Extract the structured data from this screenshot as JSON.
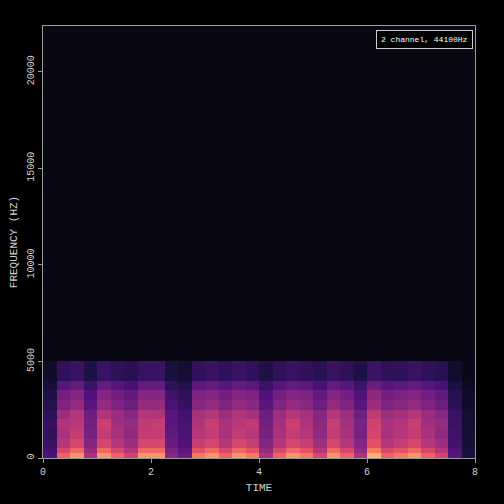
{
  "chart_data": {
    "type": "heatmap",
    "x_label": "TIME",
    "y_label": "FREQUENCY (HZ)",
    "annotation": "2 channel, 44100Hz",
    "xlim": [
      0,
      8
    ],
    "ylim": [
      0,
      22370
    ],
    "xticks": [
      0,
      2,
      4,
      6,
      8
    ],
    "yticks": [
      0,
      5000,
      10000,
      15000,
      20000
    ],
    "grid": false,
    "time_bins": [
      0,
      0.25,
      0.5,
      0.75,
      1,
      1.25,
      1.5,
      1.75,
      2,
      2.25,
      2.5,
      2.75,
      3,
      3.25,
      3.5,
      3.75,
      4,
      4.25,
      4.5,
      4.75,
      5,
      5.25,
      5.5,
      5.75,
      6,
      6.25,
      6.5,
      6.75,
      7,
      7.25,
      7.5,
      7.75,
      8
    ],
    "frequency_bins": [
      0,
      250,
      500,
      1000,
      1500,
      2000,
      2500,
      3000,
      3500,
      4000,
      5000,
      22370
    ],
    "color_range": [
      0,
      100
    ],
    "cells": [
      [
        29,
        76,
        86,
        57,
        86,
        76,
        67,
        86,
        86,
        48,
        38,
        81,
        86,
        76,
        86,
        81,
        57,
        76,
        86,
        81,
        67,
        86,
        76,
        57,
        90,
        76,
        81,
        86,
        76,
        67,
        33,
        14
      ],
      [
        26,
        68,
        77,
        51,
        77,
        68,
        60,
        77,
        77,
        43,
        34,
        72,
        77,
        68,
        77,
        72,
        51,
        68,
        77,
        72,
        60,
        77,
        68,
        51,
        81,
        68,
        72,
        77,
        68,
        60,
        30,
        13
      ],
      [
        23,
        60,
        68,
        45,
        68,
        60,
        53,
        68,
        68,
        38,
        30,
        64,
        68,
        60,
        68,
        64,
        45,
        60,
        68,
        64,
        53,
        68,
        60,
        45,
        71,
        60,
        64,
        68,
        60,
        53,
        26,
        11
      ],
      [
        21,
        56,
        63,
        42,
        63,
        56,
        49,
        63,
        63,
        35,
        28,
        60,
        63,
        56,
        63,
        60,
        42,
        56,
        63,
        60,
        49,
        63,
        56,
        42,
        67,
        56,
        60,
        63,
        56,
        49,
        25,
        11
      ],
      [
        22,
        58,
        61,
        40,
        65,
        54,
        50,
        62,
        64,
        33,
        27,
        58,
        64,
        57,
        61,
        62,
        40,
        55,
        65,
        58,
        48,
        64,
        55,
        43,
        66,
        57,
        59,
        64,
        54,
        50,
        24,
        10
      ],
      [
        20,
        52,
        59,
        39,
        58,
        52,
        46,
        59,
        58,
        33,
        26,
        55,
        59,
        52,
        58,
        55,
        39,
        52,
        59,
        55,
        46,
        59,
        52,
        39,
        62,
        52,
        55,
        59,
        52,
        46,
        23,
        10
      ],
      [
        17,
        44,
        50,
        33,
        50,
        44,
        39,
        50,
        50,
        28,
        22,
        47,
        50,
        44,
        50,
        47,
        33,
        44,
        50,
        47,
        39,
        50,
        44,
        33,
        52,
        44,
        47,
        50,
        44,
        39,
        19,
        8
      ],
      [
        15,
        40,
        45,
        30,
        45,
        40,
        35,
        45,
        45,
        25,
        20,
        43,
        45,
        40,
        45,
        43,
        30,
        40,
        45,
        43,
        35,
        45,
        40,
        30,
        48,
        40,
        43,
        45,
        40,
        35,
        18,
        8
      ],
      [
        12,
        32,
        36,
        24,
        36,
        32,
        28,
        36,
        36,
        20,
        16,
        34,
        36,
        32,
        36,
        34,
        24,
        32,
        36,
        34,
        28,
        36,
        32,
        24,
        38,
        32,
        34,
        36,
        32,
        28,
        14,
        6
      ],
      [
        8,
        20,
        23,
        15,
        23,
        20,
        18,
        23,
        23,
        13,
        10,
        21,
        23,
        20,
        23,
        21,
        15,
        20,
        23,
        21,
        18,
        23,
        20,
        15,
        24,
        20,
        21,
        23,
        20,
        18,
        9,
        4
      ],
      [
        3,
        3,
        3,
        3,
        3,
        3,
        3,
        3,
        3,
        3,
        3,
        3,
        3,
        3,
        3,
        3,
        3,
        3,
        3,
        3,
        3,
        3,
        3,
        3,
        3,
        3,
        3,
        3,
        3,
        3,
        3,
        3
      ]
    ]
  }
}
